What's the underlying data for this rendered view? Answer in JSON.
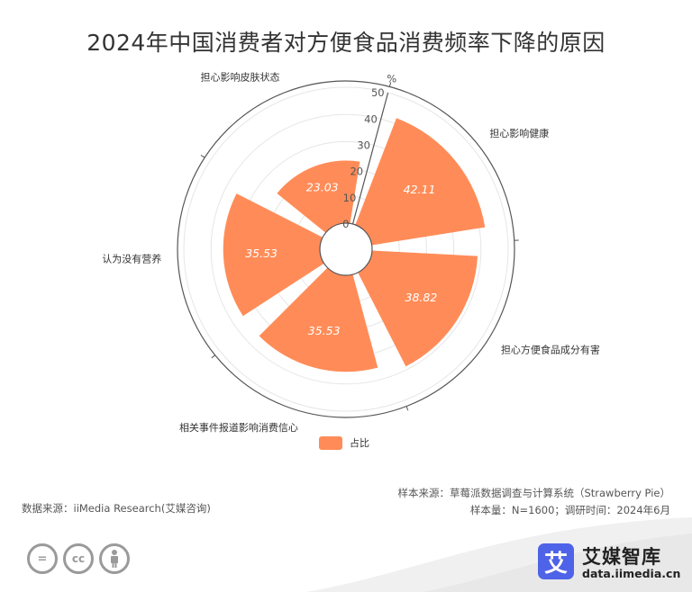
{
  "title": "2024年中国消费者对方便食品消费频率下降的原因",
  "chart_data": {
    "type": "polar-bar",
    "categories": [
      "担心影响健康",
      "担心方便食品成分有害",
      "相关事件报道影响消费信心",
      "认为没有营养",
      "担心影响皮肤状态"
    ],
    "values": [
      42.11,
      38.82,
      35.53,
      35.53,
      23.03
    ],
    "value_labels": [
      "42.11",
      "38.82",
      "35.53",
      "35.53",
      "23.03"
    ],
    "series": [
      {
        "name": "占比",
        "values": [
          42.11,
          38.82,
          35.53,
          35.53,
          23.03
        ]
      }
    ],
    "radial_axis": {
      "unit": "%",
      "ticks": [
        "0",
        "10",
        "20",
        "30",
        "40",
        "50"
      ],
      "range": [
        0,
        50
      ]
    },
    "legend_position": "bottom-center",
    "colors": {
      "bar": "#FF8C58",
      "axis": "#555555",
      "grid": "#e6e6e6"
    }
  },
  "legend": {
    "label": "占比"
  },
  "source_left": "数据来源：iiMedia Research(艾媒咨询)",
  "source_right": {
    "line1": "样本来源：草莓派数据调查与计算系统（Strawberry Pie）",
    "line2": "样本量：N=1600；调研时间：2024年6月"
  },
  "cc_icons": [
    "=",
    "cc",
    "person-icon"
  ],
  "logo": {
    "mark": "艾",
    "name": "艾媒智库",
    "url": "data.iimedia.cn",
    "color": "#4F63E8"
  }
}
